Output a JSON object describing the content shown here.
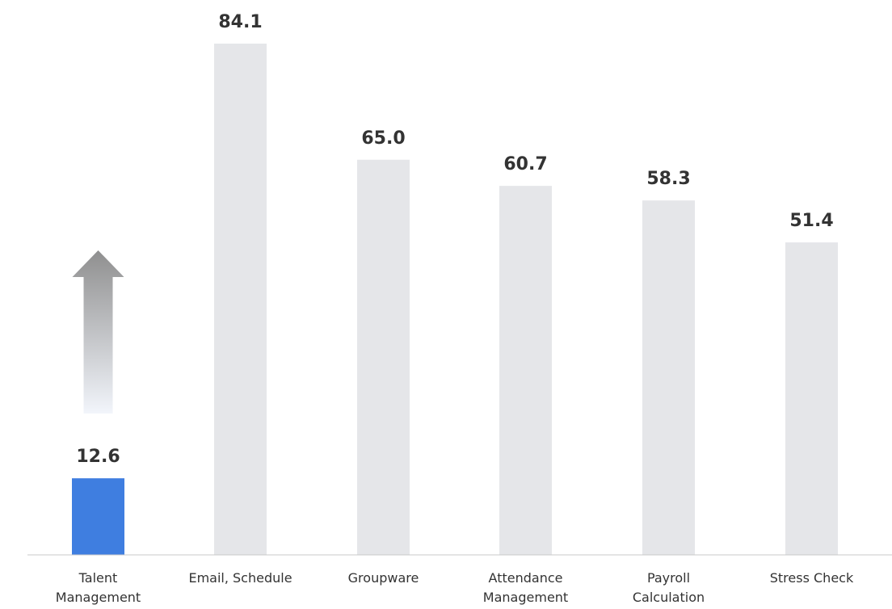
{
  "chart_data": {
    "type": "bar",
    "categories": [
      [
        "Talent",
        "Management"
      ],
      [
        "Email, Schedule"
      ],
      [
        "Groupware"
      ],
      [
        "Attendance",
        "Management"
      ],
      [
        "Payroll",
        "Calculation"
      ],
      [
        "Stress Check"
      ]
    ],
    "values": [
      12.6,
      84.1,
      65.0,
      60.7,
      58.3,
      51.4
    ],
    "value_labels": [
      "12.6",
      "84.1",
      "65.0",
      "60.7",
      "58.3",
      "51.4"
    ],
    "highlight_index": 0,
    "colors": {
      "highlight": "#3f7ee0",
      "default": "#e5e6e9",
      "baseline": "#c8c8c8",
      "arrow_top": "#8f8f8f",
      "arrow_bottom": "#f2f5fb"
    },
    "title": "",
    "xlabel": "",
    "ylabel": "",
    "ylim": [
      0,
      84.1
    ],
    "grid": false,
    "legend": "none",
    "annotations": [
      {
        "type": "arrow",
        "direction": "up",
        "icon": "up-arrow-icon"
      }
    ]
  }
}
